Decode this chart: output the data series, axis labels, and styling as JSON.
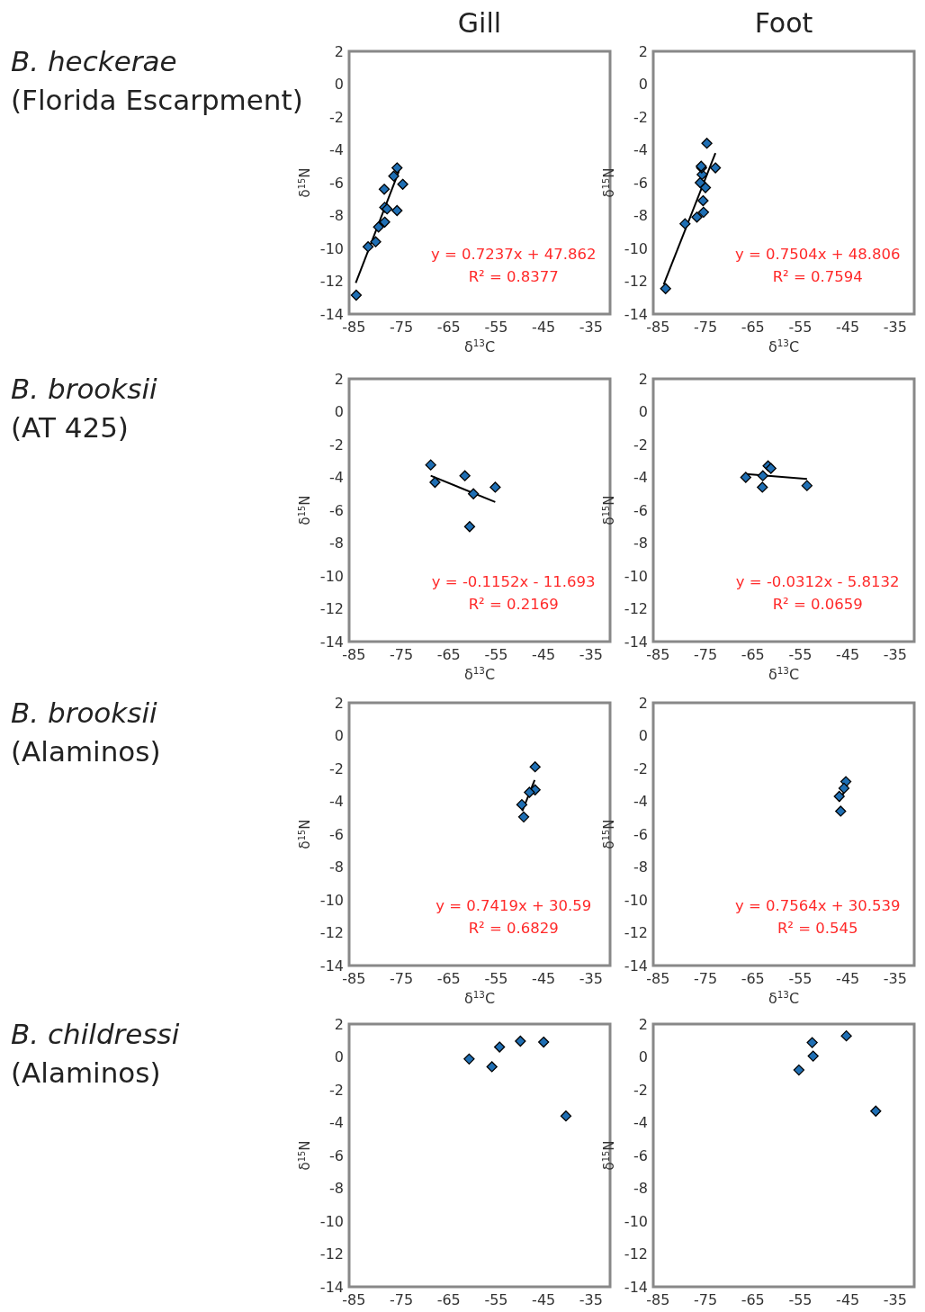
{
  "chart_data": [
    {
      "type": "scatter",
      "title": "Gill",
      "subtitle": "B. heckerae\n(Florida Escarpment)",
      "xlabel": "δ$^{13}$C",
      "ylabel": "δ$^{15}$N",
      "xlim": [
        -86,
        -31
      ],
      "ylim": [
        -14,
        2
      ],
      "xticks": [
        -85,
        -75,
        -65,
        -55,
        -45,
        -35
      ],
      "yticks": [
        -14,
        -12,
        -10,
        -8,
        -6,
        -4,
        -2,
        0,
        2
      ],
      "marker": "diamond",
      "annotations": [
        "y = 0.7237x + 47.862",
        "R² = 0.8377"
      ],
      "series": [
        {
          "color": "#1f6fb4",
          "x": [
            -84.5,
            -82.0,
            -80.4,
            -79.8,
            -78.5,
            -78.6,
            -78.5,
            -78.0,
            -75.9,
            -76.6,
            -75.9,
            -74.7
          ],
          "values": [
            -12.85,
            -9.9,
            -9.6,
            -8.7,
            -8.4,
            -6.4,
            -7.5,
            -7.6,
            -7.7,
            -5.6,
            -5.1,
            -6.1
          ]
        },
        {
          "type": "line",
          "marker": "none",
          "color": "#000000",
          "x": [
            -84.6,
            -75.5
          ],
          "values": [
            -12.1,
            -5.3
          ]
        }
      ]
    },
    {
      "type": "scatter",
      "title": "Foot",
      "xlabel": "δ$^{13}$C",
      "ylabel": "δ$^{15}$N",
      "xlim": [
        -86,
        -31
      ],
      "ylim": [
        -14,
        2
      ],
      "xticks": [
        -85,
        -75,
        -65,
        -55,
        -45,
        -35
      ],
      "yticks": [
        -14,
        -12,
        -10,
        -8,
        -6,
        -4,
        -2,
        0,
        2
      ],
      "marker": "diamond",
      "annotations": [
        "y = 0.7504x + 48.806",
        "R² = 0.7594"
      ],
      "series": [
        {
          "color": "#1f6fb4",
          "x": [
            -83.4,
            -79.3,
            -76.8,
            -75.4,
            -75.5,
            -75.0,
            -76.1,
            -75.7,
            -75.8,
            -75.9,
            -74.7,
            -72.9
          ],
          "values": [
            -12.45,
            -8.5,
            -8.1,
            -7.8,
            -7.1,
            -6.3,
            -6.0,
            -5.5,
            -5.1,
            -5.0,
            -3.6,
            -5.1
          ]
        },
        {
          "type": "line",
          "marker": "none",
          "color": "#000000",
          "x": [
            -83.8,
            -72.9
          ],
          "values": [
            -12.2,
            -4.2
          ]
        }
      ]
    },
    {
      "type": "scatter",
      "subtitle": "B. brooksii\n(AT 425)",
      "xlabel": "δ$^{13}$C",
      "ylabel": "δ$^{15}$N",
      "xlim": [
        -86,
        -31
      ],
      "ylim": [
        -14,
        2
      ],
      "xticks": [
        -85,
        -75,
        -65,
        -55,
        -45,
        -35
      ],
      "yticks": [
        -14,
        -12,
        -10,
        -8,
        -6,
        -4,
        -2,
        0,
        2
      ],
      "marker": "diamond",
      "annotations": [
        "y = -0.1152x - 11.693",
        "R² = 0.2169"
      ],
      "series": [
        {
          "color": "#1f6fb4",
          "x": [
            -68.8,
            -67.9,
            -61.6,
            -59.8,
            -60.6,
            -55.2
          ],
          "values": [
            -3.24,
            -4.3,
            -3.9,
            -5.0,
            -7.0,
            -4.6
          ]
        },
        {
          "type": "line",
          "marker": "none",
          "color": "#000000",
          "x": [
            -68.8,
            -55.2
          ],
          "values": [
            -3.9,
            -5.5
          ]
        }
      ]
    },
    {
      "type": "scatter",
      "xlabel": "δ$^{13}$C",
      "ylabel": "δ$^{15}$N",
      "xlim": [
        -86,
        -31
      ],
      "ylim": [
        -14,
        2
      ],
      "xticks": [
        -85,
        -75,
        -65,
        -55,
        -45,
        -35
      ],
      "yticks": [
        -14,
        -12,
        -10,
        -8,
        -6,
        -4,
        -2,
        0,
        2
      ],
      "marker": "diamond",
      "annotations": [
        "y = -0.0312x - 5.8132",
        "R² = 0.0659"
      ],
      "series": [
        {
          "color": "#1f6fb4",
          "x": [
            -66.5,
            -63.0,
            -62.9,
            -61.8,
            -61.2,
            -53.6
          ],
          "values": [
            -4.0,
            -4.6,
            -3.9,
            -3.3,
            -3.45,
            -4.5
          ]
        },
        {
          "type": "line",
          "marker": "none",
          "color": "#000000",
          "x": [
            -66.5,
            -53.6
          ],
          "values": [
            -3.8,
            -4.1
          ]
        }
      ]
    },
    {
      "type": "scatter",
      "subtitle": "B. brooksii\n(Alaminos)",
      "xlabel": "δ$^{13}$C",
      "ylabel": "δ$^{15}$N",
      "xlim": [
        -86,
        -31
      ],
      "ylim": [
        -14,
        2
      ],
      "xticks": [
        -85,
        -75,
        -65,
        -55,
        -45,
        -35
      ],
      "yticks": [
        -14,
        -12,
        -10,
        -8,
        -6,
        -4,
        -2,
        0,
        2
      ],
      "marker": "diamond",
      "annotations": [
        "y = 0.7419x + 30.59",
        "R² = 0.6829"
      ],
      "series": [
        {
          "color": "#1f6fb4",
          "x": [
            -46.8,
            -46.8,
            -48.0,
            -49.6,
            -49.2
          ],
          "values": [
            -1.9,
            -3.3,
            -3.45,
            -4.2,
            -4.95
          ]
        },
        {
          "type": "line",
          "marker": "none",
          "color": "#000000",
          "x": [
            -49.5,
            -46.9
          ],
          "values": [
            -4.6,
            -2.7
          ]
        }
      ]
    },
    {
      "type": "scatter",
      "xlabel": "δ$^{13}$C",
      "ylabel": "δ$^{15}$N",
      "xlim": [
        -86,
        -31
      ],
      "ylim": [
        -14,
        2
      ],
      "xticks": [
        -85,
        -75,
        -65,
        -55,
        -45,
        -35
      ],
      "yticks": [
        -14,
        -12,
        -10,
        -8,
        -6,
        -4,
        -2,
        0,
        2
      ],
      "marker": "diamond",
      "annotations": [
        "y = 0.7564x + 30.539",
        "R² = 0.545"
      ],
      "series": [
        {
          "color": "#1f6fb4",
          "x": [
            -45.4,
            -45.8,
            -46.8,
            -46.5
          ],
          "values": [
            -2.8,
            -3.2,
            -3.7,
            -4.6
          ]
        },
        {
          "type": "line",
          "marker": "none",
          "color": "#000000",
          "x": [
            -46.8,
            -45.1
          ],
          "values": [
            -4.0,
            -3.05
          ]
        }
      ]
    },
    {
      "type": "scatter",
      "subtitle": "B. childressi\n(Alaminos)",
      "ylabel": "δ$^{15}$N",
      "xlim": [
        -86,
        -31
      ],
      "ylim": [
        -14,
        2
      ],
      "xticks": [
        -85,
        -75,
        -65,
        -55,
        -45,
        -35
      ],
      "yticks": [
        -14,
        -12,
        -10,
        -8,
        -6,
        -4,
        -2,
        0,
        2
      ],
      "marker": "diamond",
      "series": [
        {
          "color": "#1f6fb4",
          "x": [
            -60.7,
            -55.9,
            -54.3,
            -49.9,
            -45.0,
            -40.3
          ],
          "values": [
            -0.13,
            -0.6,
            0.6,
            0.96,
            0.9,
            -3.6
          ]
        }
      ]
    },
    {
      "type": "scatter",
      "ylabel": "δ$^{15}$N",
      "xlim": [
        -86,
        -31
      ],
      "ylim": [
        -14,
        2
      ],
      "xticks": [
        -85,
        -75,
        -65,
        -55,
        -45,
        -35
      ],
      "yticks": [
        -14,
        -12,
        -10,
        -8,
        -6,
        -4,
        -2,
        0,
        2
      ],
      "marker": "diamond",
      "series": [
        {
          "color": "#1f6fb4",
          "x": [
            -55.3,
            -52.5,
            -52.3,
            -45.3,
            -39.1
          ],
          "values": [
            -0.8,
            0.87,
            0.05,
            1.28,
            -3.3
          ]
        }
      ]
    }
  ]
}
